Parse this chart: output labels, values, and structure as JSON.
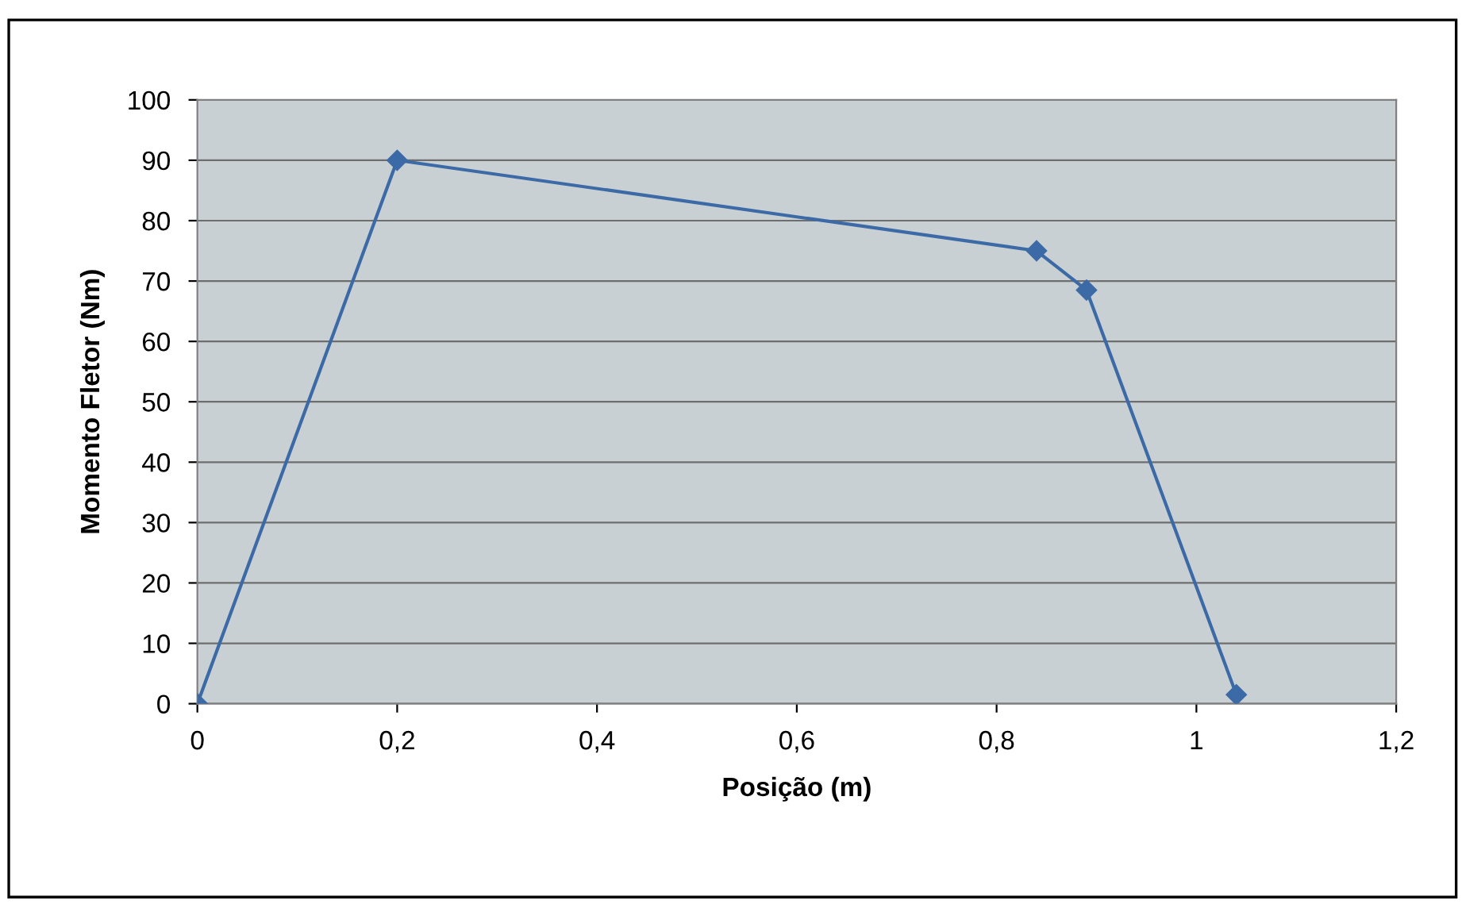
{
  "chart_data": {
    "type": "line",
    "xlabel": "Posição (m)",
    "ylabel": "Momento Fletor (Nm)",
    "x": [
      0,
      0.2,
      0.84,
      0.89,
      1.04
    ],
    "series": [
      {
        "color": "#3b6aa6",
        "values": [
          0,
          90,
          75,
          68.5,
          1.5
        ]
      }
    ],
    "xlim": [
      0,
      1.2
    ],
    "ylim": [
      0,
      100
    ],
    "xticks": [
      0,
      {
        "value": 0.2,
        "label": "0,2"
      },
      {
        "value": 0.4,
        "label": "0,4"
      },
      {
        "value": 0.6,
        "label": "0,6"
      },
      {
        "value": 0.8,
        "label": "0,8"
      },
      1,
      {
        "value": 1.2,
        "label": "1,2"
      }
    ],
    "yticks": [
      0,
      10,
      20,
      30,
      40,
      50,
      60,
      70,
      80,
      90,
      100
    ],
    "grid": "y",
    "marker": "diamond",
    "line_style": "solid"
  }
}
